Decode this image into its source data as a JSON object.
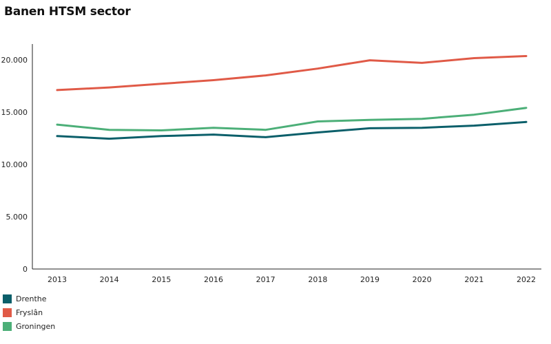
{
  "header": {
    "title": "Banen HTSM sector"
  },
  "chart_data": {
    "type": "line",
    "title": "Banen HTSM sector",
    "xlabel": "",
    "ylabel": "",
    "categories": [
      "2013",
      "2014",
      "2015",
      "2016",
      "2017",
      "2018",
      "2019",
      "2020",
      "2021",
      "2022"
    ],
    "ylim": [
      0,
      21500
    ],
    "yticks": [
      0,
      5000,
      10000,
      15000,
      20000
    ],
    "ytick_labels": [
      "0",
      "5.000",
      "10.000",
      "15.000",
      "20.000"
    ],
    "grid": false,
    "legend_position": "bottom-left",
    "series": [
      {
        "name": "Drenthe",
        "color": "#0b5f6a",
        "values": [
          12700,
          12450,
          12700,
          12850,
          12600,
          13050,
          13450,
          13500,
          13700,
          14050
        ]
      },
      {
        "name": "Fryslân",
        "color": "#e05a47",
        "values": [
          17100,
          17350,
          17700,
          18050,
          18500,
          19150,
          19950,
          19700,
          20150,
          20350
        ]
      },
      {
        "name": "Groningen",
        "color": "#4caf78",
        "values": [
          13800,
          13300,
          13250,
          13500,
          13300,
          14100,
          14250,
          14350,
          14750,
          15400
        ]
      }
    ]
  }
}
